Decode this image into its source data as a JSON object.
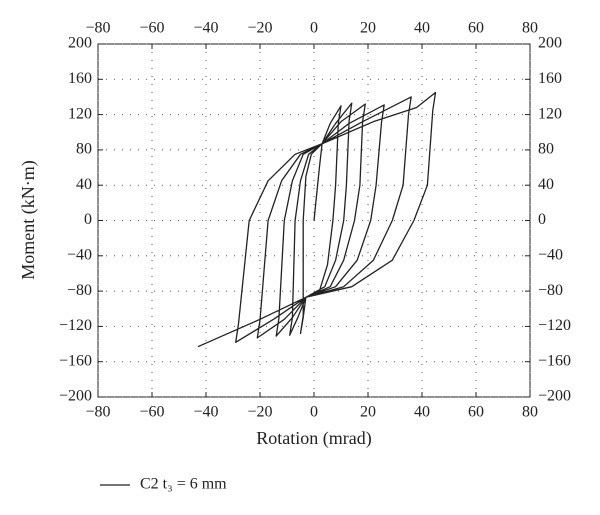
{
  "chart_data": {
    "type": "line",
    "x_label": "Rotation (mrad)",
    "y_label": "Moment (kN·m)",
    "xlim": [
      -80,
      80
    ],
    "ylim": [
      -200,
      200
    ],
    "xticks": [
      {
        "value": -80,
        "label": "−80"
      },
      {
        "value": -60,
        "label": "−60"
      },
      {
        "value": -40,
        "label": "−40"
      },
      {
        "value": -20,
        "label": "−20"
      },
      0,
      20,
      40,
      60,
      80
    ],
    "yticks": [
      {
        "value": -200,
        "label": "−200"
      },
      {
        "value": -160,
        "label": "−160"
      },
      {
        "value": -120,
        "label": "−120"
      },
      {
        "value": -80,
        "label": "−80"
      },
      {
        "value": -40,
        "label": "−40"
      },
      0,
      40,
      80,
      120,
      160,
      200
    ],
    "grid": true,
    "legend": "bottom-left",
    "series": [
      {
        "name": "C2 t₃ = 6 mm",
        "color": "#222222",
        "x": [
          0,
          2,
          3,
          6,
          10,
          9,
          8,
          7,
          5,
          2,
          -3,
          -4,
          -5,
          -4,
          -4,
          -3,
          -1,
          3,
          8,
          14,
          13,
          12,
          11,
          8,
          4,
          -3,
          -6,
          -9,
          -8,
          -7,
          -5,
          -2,
          3,
          10,
          19,
          18,
          17,
          15,
          11,
          6,
          -3,
          -8,
          -14,
          -13,
          -11,
          -8,
          -4,
          3,
          13,
          26,
          25,
          23,
          21,
          16,
          8,
          -3,
          -11,
          -21,
          -20,
          -17,
          -12,
          -5,
          3,
          18,
          36,
          35,
          33,
          29,
          22,
          11,
          -3,
          -15,
          -29,
          -28,
          -24,
          -17,
          -7,
          3,
          22,
          38,
          45,
          44,
          42,
          37,
          29,
          14,
          -3,
          -20,
          -43
        ],
        "values": [
          0,
          60,
          87,
          110,
          130,
          110,
          40,
          0,
          -50,
          -80,
          -87,
          -110,
          -128,
          -108,
          0,
          50,
          75,
          87,
          110,
          133,
          113,
          40,
          0,
          -45,
          -75,
          -87,
          -110,
          -130,
          -110,
          0,
          45,
          75,
          87,
          112,
          132,
          112,
          40,
          0,
          -45,
          -75,
          -87,
          -110,
          -131,
          -111,
          0,
          45,
          75,
          87,
          110,
          131,
          111,
          40,
          0,
          -45,
          -75,
          -87,
          -112,
          -133,
          -113,
          0,
          45,
          75,
          87,
          112,
          140,
          120,
          40,
          0,
          -45,
          -75,
          -87,
          -112,
          -138,
          -118,
          0,
          45,
          75,
          87,
          112,
          128,
          145,
          125,
          40,
          0,
          -45,
          -75,
          -87,
          -112,
          -143
        ]
      }
    ]
  }
}
